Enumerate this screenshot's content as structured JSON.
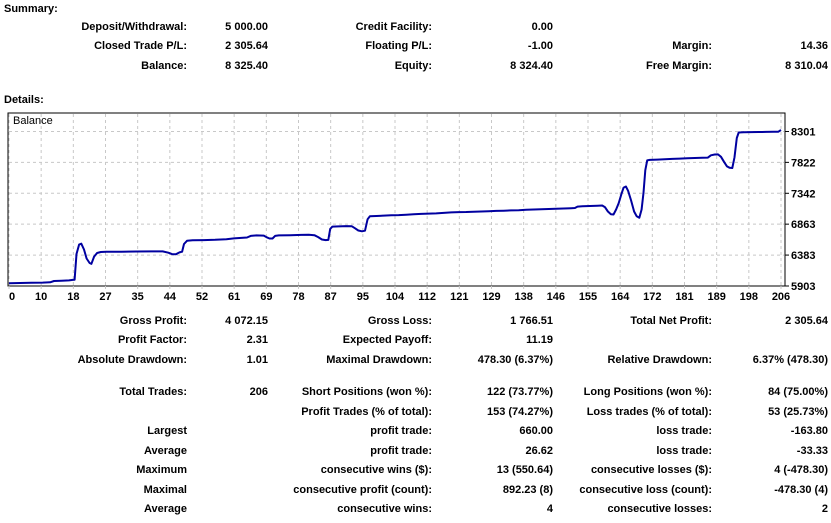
{
  "summary": {
    "heading": "Summary:",
    "rows": [
      [
        "Deposit/Withdrawal:",
        "5 000.00",
        "Credit Facility:",
        "0.00",
        "",
        ""
      ],
      [
        "Closed Trade P/L:",
        "2 305.64",
        "Floating P/L:",
        "-1.00",
        "Margin:",
        "14.36"
      ],
      [
        "Balance:",
        "8 325.40",
        "Equity:",
        "8 324.40",
        "Free Margin:",
        "8 310.04"
      ]
    ]
  },
  "details_heading": "Details:",
  "stats": {
    "top_rows": [
      [
        "Gross Profit:",
        "4 072.15",
        "Gross Loss:",
        "1 766.51",
        "Total Net Profit:",
        "2 305.64"
      ],
      [
        "Profit Factor:",
        "2.31",
        "Expected Payoff:",
        "11.19",
        "",
        ""
      ],
      [
        "Absolute Drawdown:",
        "1.01",
        "Maximal Drawdown:",
        "478.30 (6.37%)",
        "Relative Drawdown:",
        "6.37% (478.30)"
      ]
    ],
    "bottom_rows": [
      [
        "Total Trades:",
        "206",
        "Short Positions (won %):",
        "122 (73.77%)",
        "Long Positions (won %):",
        "84 (75.00%)"
      ],
      [
        "",
        "",
        "Profit Trades (% of total):",
        "153 (74.27%)",
        "Loss trades (% of total):",
        "53 (25.73%)"
      ],
      [
        "Largest",
        "",
        "profit trade:",
        "660.00",
        "loss trade:",
        "-163.80"
      ],
      [
        "Average",
        "",
        "profit trade:",
        "26.62",
        "loss trade:",
        "-33.33"
      ],
      [
        "Maximum",
        "",
        "consecutive wins ($):",
        "13 (550.64)",
        "consecutive losses ($):",
        "4 (-478.30)"
      ],
      [
        "Maximal",
        "",
        "consecutive profit (count):",
        "892.23 (8)",
        "consecutive loss (count):",
        "-478.30 (4)"
      ],
      [
        "Average",
        "",
        "consecutive wins:",
        "4",
        "consecutive losses:",
        "2"
      ]
    ]
  },
  "chart_data": {
    "type": "line",
    "title": "Balance",
    "legend_position": "top-left",
    "grid": true,
    "xlim": [
      0,
      206
    ],
    "ylim": [
      5903,
      8580
    ],
    "x_tick_labels": [
      "0",
      "10",
      "18",
      "27",
      "35",
      "44",
      "52",
      "61",
      "69",
      "78",
      "87",
      "95",
      "104",
      "112",
      "121",
      "129",
      "138",
      "146",
      "155",
      "164",
      "172",
      "181",
      "189",
      "198",
      "206"
    ],
    "y_tick_labels": [
      "8301",
      "7822",
      "7342",
      "6863",
      "6383",
      "5903"
    ],
    "y_tick_values": [
      8301,
      7822,
      7342,
      6863,
      6383,
      5903
    ],
    "colors": {
      "line": "#0000A0",
      "grid": "#c8c8c8",
      "frame": "#000000",
      "text": "#000000",
      "background": "#ffffff"
    },
    "series": [
      {
        "name": "Balance",
        "points": [
          [
            0,
            5945
          ],
          [
            3,
            5950
          ],
          [
            6,
            5952
          ],
          [
            9,
            5955
          ],
          [
            11,
            5960
          ],
          [
            12,
            5980
          ],
          [
            14,
            5985
          ],
          [
            16,
            5990
          ],
          [
            17,
            5998
          ],
          [
            17.5,
            6000
          ],
          [
            18,
            6400
          ],
          [
            18.7,
            6545
          ],
          [
            19.3,
            6560
          ],
          [
            20,
            6470
          ],
          [
            20.7,
            6330
          ],
          [
            21.5,
            6260
          ],
          [
            22,
            6248
          ],
          [
            22.7,
            6360
          ],
          [
            23.5,
            6415
          ],
          [
            24.5,
            6430
          ],
          [
            26,
            6435
          ],
          [
            30,
            6435
          ],
          [
            34,
            6438
          ],
          [
            38,
            6440
          ],
          [
            41,
            6440
          ],
          [
            42.5,
            6420
          ],
          [
            43.5,
            6398
          ],
          [
            44.5,
            6395
          ],
          [
            45.5,
            6425
          ],
          [
            46.2,
            6435
          ],
          [
            46.7,
            6555
          ],
          [
            47.5,
            6605
          ],
          [
            49,
            6612
          ],
          [
            52,
            6615
          ],
          [
            55,
            6620
          ],
          [
            58,
            6630
          ],
          [
            60,
            6642
          ],
          [
            62,
            6650
          ],
          [
            63.5,
            6655
          ],
          [
            64.5,
            6680
          ],
          [
            66,
            6688
          ],
          [
            68,
            6685
          ],
          [
            68.7,
            6660
          ],
          [
            69.5,
            6640
          ],
          [
            70.3,
            6640
          ],
          [
            71,
            6680
          ],
          [
            72,
            6688
          ],
          [
            75,
            6692
          ],
          [
            78,
            6696
          ],
          [
            80,
            6698
          ],
          [
            81.5,
            6692
          ],
          [
            82.5,
            6662
          ],
          [
            83.5,
            6625
          ],
          [
            84.5,
            6615
          ],
          [
            85.2,
            6618
          ],
          [
            85.7,
            6790
          ],
          [
            86.3,
            6825
          ],
          [
            88,
            6828
          ],
          [
            90,
            6832
          ],
          [
            91.5,
            6830
          ],
          [
            92.3,
            6800
          ],
          [
            93.2,
            6765
          ],
          [
            94.2,
            6752
          ],
          [
            95,
            6762
          ],
          [
            95.7,
            6940
          ],
          [
            96.3,
            6985
          ],
          [
            98,
            6990
          ],
          [
            100,
            6995
          ],
          [
            102,
            7000
          ],
          [
            104,
            7003
          ],
          [
            106,
            7010
          ],
          [
            108,
            7018
          ],
          [
            110,
            7022
          ],
          [
            112,
            7026
          ],
          [
            114,
            7030
          ],
          [
            116,
            7038
          ],
          [
            118,
            7045
          ],
          [
            120,
            7050
          ],
          [
            122,
            7052
          ],
          [
            124,
            7056
          ],
          [
            126,
            7060
          ],
          [
            128,
            7064
          ],
          [
            130,
            7068
          ],
          [
            132,
            7072
          ],
          [
            134,
            7076
          ],
          [
            136,
            7080
          ],
          [
            138,
            7085
          ],
          [
            140,
            7090
          ],
          [
            142,
            7094
          ],
          [
            144,
            7098
          ],
          [
            146,
            7102
          ],
          [
            148,
            7106
          ],
          [
            150,
            7110
          ],
          [
            151,
            7114
          ],
          [
            151.7,
            7136
          ],
          [
            153,
            7140
          ],
          [
            155,
            7145
          ],
          [
            157,
            7150
          ],
          [
            158.3,
            7152
          ],
          [
            159,
            7128
          ],
          [
            159.8,
            7060
          ],
          [
            160.6,
            7018
          ],
          [
            161.3,
            7012
          ],
          [
            162,
            7090
          ],
          [
            162.7,
            7190
          ],
          [
            163.4,
            7330
          ],
          [
            164,
            7430
          ],
          [
            164.6,
            7448
          ],
          [
            165.2,
            7380
          ],
          [
            166,
            7230
          ],
          [
            166.8,
            7060
          ],
          [
            167.5,
            6985
          ],
          [
            168.2,
            6962
          ],
          [
            168.8,
            7090
          ],
          [
            169.3,
            7350
          ],
          [
            169.8,
            7700
          ],
          [
            170.3,
            7852
          ],
          [
            171,
            7860
          ],
          [
            173,
            7865
          ],
          [
            175,
            7870
          ],
          [
            177,
            7875
          ],
          [
            179,
            7880
          ],
          [
            181,
            7885
          ],
          [
            183,
            7890
          ],
          [
            185,
            7893
          ],
          [
            186.5,
            7896
          ],
          [
            187.3,
            7932
          ],
          [
            188.3,
            7944
          ],
          [
            189.2,
            7946
          ],
          [
            190,
            7908
          ],
          [
            190.8,
            7830
          ],
          [
            191.6,
            7760
          ],
          [
            192.3,
            7738
          ],
          [
            193,
            7734
          ],
          [
            193.6,
            7900
          ],
          [
            194.2,
            8200
          ],
          [
            194.7,
            8286
          ],
          [
            196,
            8289
          ],
          [
            198,
            8291
          ],
          [
            200,
            8293
          ],
          [
            202,
            8295
          ],
          [
            204,
            8296
          ],
          [
            205.3,
            8298
          ],
          [
            206,
            8325
          ]
        ]
      }
    ]
  }
}
